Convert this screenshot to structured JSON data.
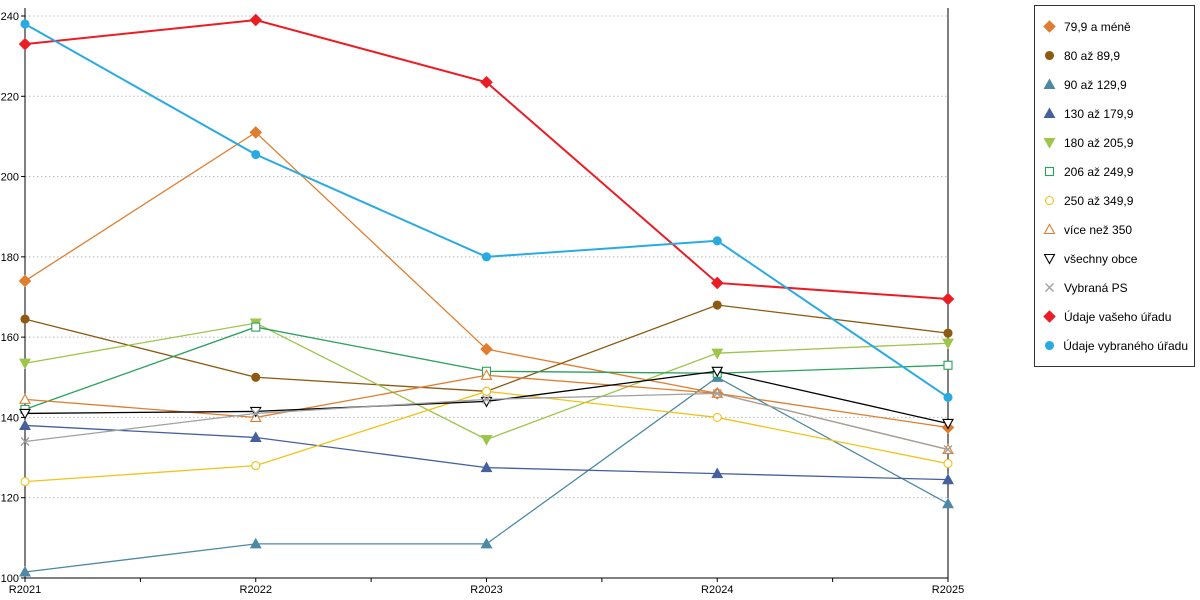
{
  "chart_data": {
    "type": "line",
    "title": "",
    "xlabel": "",
    "ylabel": "",
    "categories": [
      "R2021",
      "R2022",
      "R2023",
      "R2024",
      "R2025"
    ],
    "ylim": [
      100,
      240
    ],
    "ytick_step": 20,
    "grid": "horizontal-dotted",
    "legend_position": "right",
    "series": [
      {
        "name": "79,9 a méně",
        "color": "#E07D2E",
        "marker": "diamond",
        "filled": true,
        "line_width": 1.3,
        "values": [
          174,
          211,
          157,
          146,
          137.5
        ]
      },
      {
        "name": "80 až 89,9",
        "color": "#8C5A10",
        "marker": "circle",
        "filled": true,
        "line_width": 1.3,
        "values": [
          164.5,
          150,
          146.5,
          168,
          161
        ]
      },
      {
        "name": "90 až 129,9",
        "color": "#4D89A5",
        "marker": "triangle-up",
        "filled": true,
        "line_width": 1.3,
        "values": [
          101.5,
          108.5,
          108.5,
          150,
          118.5
        ]
      },
      {
        "name": "130 až 179,9",
        "color": "#44619D",
        "marker": "triangle-up",
        "filled": true,
        "line_width": 1.3,
        "values": [
          138,
          135,
          127.5,
          126,
          124.5
        ]
      },
      {
        "name": "180 až 205,9",
        "color": "#9DC54A",
        "marker": "triangle-down",
        "filled": true,
        "line_width": 1.3,
        "values": [
          153.5,
          163.5,
          134.5,
          156,
          158.5
        ]
      },
      {
        "name": "206 až 249,9",
        "color": "#2BA05F",
        "marker": "square",
        "filled": false,
        "line_width": 1.3,
        "values": [
          142,
          162.5,
          151.5,
          151,
          153
        ]
      },
      {
        "name": "250 až 349,9",
        "color": "#EFC319",
        "marker": "circle",
        "filled": false,
        "line_width": 1.3,
        "values": [
          124,
          128,
          146.5,
          140,
          128.5
        ]
      },
      {
        "name": "více než 350",
        "color": "#E07D2E",
        "marker": "triangle-up",
        "filled": false,
        "line_width": 1.3,
        "values": [
          144.5,
          140,
          150.5,
          146,
          132
        ]
      },
      {
        "name": "všechny obce",
        "color": "#000000",
        "marker": "triangle-down",
        "filled": false,
        "line_width": 1.3,
        "values": [
          141,
          141.5,
          144,
          151.5,
          138.5
        ]
      },
      {
        "name": "Vybraná PS",
        "color": "#A0A0A0",
        "marker": "x",
        "filled": false,
        "line_width": 1.3,
        "values": [
          134,
          141,
          144.5,
          146,
          132
        ]
      },
      {
        "name": "Údaje vašeho úřadu",
        "color": "#EC1C24",
        "marker": "diamond",
        "filled": true,
        "line_width": 2,
        "values": [
          233,
          239,
          223.5,
          173.5,
          169.5
        ]
      },
      {
        "name": "Údaje vybraného úřadu",
        "color": "#29ABE2",
        "marker": "circle",
        "filled": true,
        "line_width": 2,
        "values": [
          238,
          205.5,
          180,
          184,
          145
        ]
      }
    ]
  }
}
